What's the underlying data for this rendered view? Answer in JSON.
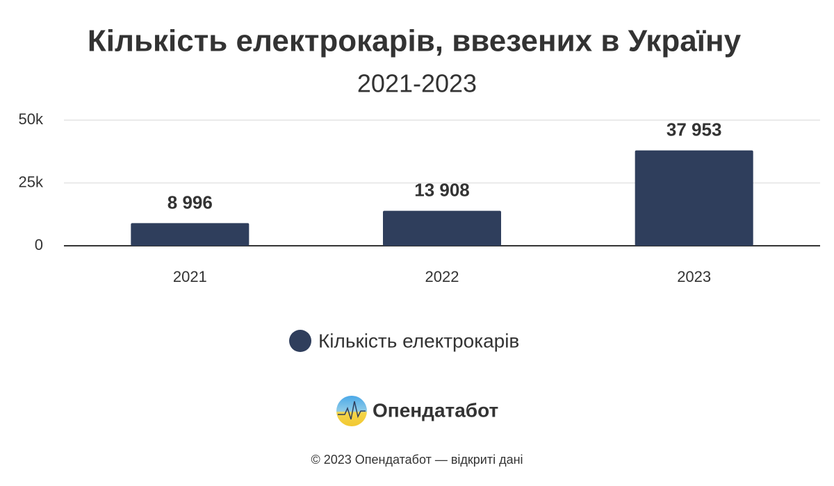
{
  "chart_data": {
    "type": "bar",
    "title": "Кількість електрокарів, ввезених в Україну",
    "subtitle": "2021-2023",
    "categories": [
      "2021",
      "2022",
      "2023"
    ],
    "series": [
      {
        "name": "Кількість електрокарів",
        "color": "#2f3e5c",
        "values": [
          8996,
          13908,
          37953
        ],
        "value_labels": [
          "8 996",
          "13 908",
          "37 953"
        ]
      }
    ],
    "ylim": [
      0,
      50000
    ],
    "yticks": [
      0,
      {
        "value": 25000,
        "label": "25k"
      },
      {
        "value": 50000,
        "label": "50k"
      }
    ],
    "grid": true,
    "legend": "bottom"
  },
  "brand": "Опендатабот",
  "footer": "© 2023 Опендатабот — відкриті дані"
}
